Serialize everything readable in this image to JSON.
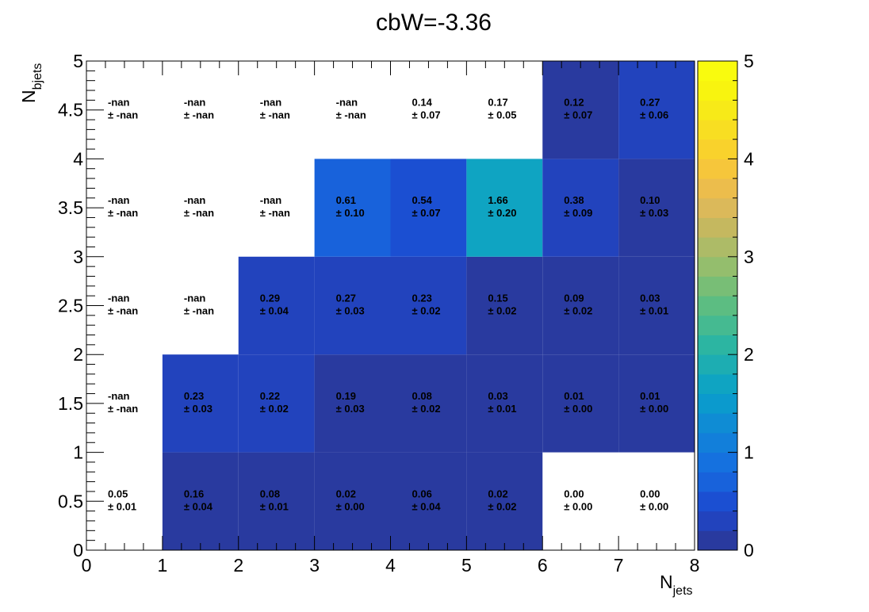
{
  "chart_data": {
    "type": "heatmap",
    "title": "cbW=-3.36",
    "xlabel": {
      "main": "N",
      "sub": "jets"
    },
    "ylabel": {
      "main": "N",
      "sub": "bjets"
    },
    "x_edges": [
      0,
      1,
      2,
      3,
      4,
      5,
      6,
      7,
      8
    ],
    "y_edges": [
      0,
      1,
      2,
      3,
      4,
      5
    ],
    "xlim": [
      0,
      8
    ],
    "ylim": [
      0,
      5
    ],
    "x_ticks": [
      0,
      1,
      2,
      3,
      4,
      5,
      6,
      7,
      8
    ],
    "x_tick_labels": [
      "0",
      "1",
      "2",
      "3",
      "4",
      "5",
      "6",
      "7",
      "8"
    ],
    "y_ticks": [
      0,
      0.5,
      1,
      1.5,
      2,
      2.5,
      3,
      3.5,
      4,
      4.5,
      5
    ],
    "y_tick_labels": [
      "0",
      "0.5",
      "1",
      "1.5",
      "2",
      "2.5",
      "3",
      "3.5",
      "4",
      "4.5",
      "5"
    ],
    "colorbar": {
      "range": [
        0,
        5
      ],
      "ticks": [
        0,
        1,
        2,
        3,
        4,
        5
      ],
      "tick_labels": [
        "0",
        "1",
        "2",
        "3",
        "4",
        "5"
      ],
      "palette": [
        "#293a9f",
        "#2243bd",
        "#1b4fd2",
        "#1862db",
        "#1571df",
        "#127fda",
        "#0f8cd4",
        "#0b9acd",
        "#0fa4c2",
        "#1dadb2",
        "#2cb5a2",
        "#45ba91",
        "#5cbd82",
        "#78be76",
        "#94be6d",
        "#adbb67",
        "#c5b85f",
        "#dbb95a",
        "#ecbd4c",
        "#f6c63b",
        "#f9d22c",
        "#f8de22",
        "#f7ea18",
        "#f8f40f",
        "#f9fb0e"
      ]
    },
    "rows": [
      {
        "y_bin": [
          0,
          1
        ],
        "values": [
          0.05,
          0.16,
          0.08,
          0.02,
          0.06,
          0.02,
          0.0,
          0.0
        ],
        "filled": [
          false,
          true,
          true,
          true,
          true,
          true,
          false,
          false
        ],
        "value_labels": [
          "0.05",
          "0.16",
          "0.08",
          "0.02",
          "0.06",
          "0.02",
          "0.00",
          "0.00"
        ],
        "error_labels": [
          "± 0.01",
          "± 0.04",
          "± 0.01",
          "± 0.00",
          "± 0.04",
          "± 0.02",
          "± 0.00",
          "± 0.00"
        ]
      },
      {
        "y_bin": [
          1,
          2
        ],
        "values": [
          null,
          0.23,
          0.22,
          0.19,
          0.08,
          0.03,
          0.01,
          0.01
        ],
        "filled": [
          false,
          true,
          true,
          true,
          true,
          true,
          true,
          true
        ],
        "value_labels": [
          "-nan",
          "0.23",
          "0.22",
          "0.19",
          "0.08",
          "0.03",
          "0.01",
          "0.01"
        ],
        "error_labels": [
          "± -nan",
          "± 0.03",
          "± 0.02",
          "± 0.03",
          "± 0.02",
          "± 0.01",
          "± 0.00",
          "± 0.00"
        ]
      },
      {
        "y_bin": [
          2,
          3
        ],
        "values": [
          null,
          null,
          0.29,
          0.27,
          0.23,
          0.15,
          0.09,
          0.03
        ],
        "filled": [
          false,
          false,
          true,
          true,
          true,
          true,
          true,
          true
        ],
        "value_labels": [
          "-nan",
          "-nan",
          "0.29",
          "0.27",
          "0.23",
          "0.15",
          "0.09",
          "0.03"
        ],
        "error_labels": [
          "± -nan",
          "± -nan",
          "± 0.04",
          "± 0.03",
          "± 0.02",
          "± 0.02",
          "± 0.02",
          "± 0.01"
        ]
      },
      {
        "y_bin": [
          3,
          4
        ],
        "values": [
          null,
          null,
          null,
          0.61,
          0.54,
          1.66,
          0.38,
          0.1
        ],
        "filled": [
          false,
          false,
          false,
          true,
          true,
          true,
          true,
          true
        ],
        "value_labels": [
          "-nan",
          "-nan",
          "-nan",
          "0.61",
          "0.54",
          "1.66",
          "0.38",
          "0.10"
        ],
        "error_labels": [
          "± -nan",
          "± -nan",
          "± -nan",
          "± 0.10",
          "± 0.07",
          "± 0.20",
          "± 0.09",
          "± 0.03"
        ]
      },
      {
        "y_bin": [
          4,
          5
        ],
        "values": [
          null,
          null,
          null,
          null,
          0.14,
          0.17,
          0.12,
          0.27
        ],
        "filled": [
          false,
          false,
          false,
          false,
          false,
          false,
          true,
          true
        ],
        "value_labels": [
          "-nan",
          "-nan",
          "-nan",
          "-nan",
          "0.14",
          "0.17",
          "0.12",
          "0.27"
        ],
        "error_labels": [
          "± -nan",
          "± -nan",
          "± -nan",
          "± -nan",
          "± 0.07",
          "± 0.05",
          "± 0.07",
          "± 0.06"
        ]
      }
    ]
  }
}
